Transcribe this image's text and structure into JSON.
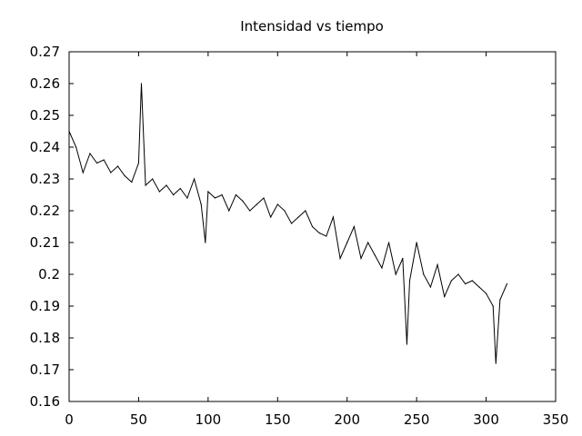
{
  "chart_data": {
    "type": "line",
    "title": "Intensidad vs tiempo",
    "xlabel": "",
    "ylabel": "",
    "xlim": [
      0,
      350
    ],
    "ylim": [
      0.16,
      0.27
    ],
    "x_ticks": [
      0,
      50,
      100,
      150,
      200,
      250,
      300,
      350
    ],
    "x_tick_labels": [
      "0",
      "50",
      "100",
      "150",
      "200",
      "250",
      "300",
      "350"
    ],
    "y_ticks": [
      0.16,
      0.17,
      0.18,
      0.19,
      0.2,
      0.21,
      0.22,
      0.23,
      0.24,
      0.25,
      0.26,
      0.27
    ],
    "y_tick_labels": [
      "0.16",
      "0.17",
      "0.18",
      "0.19",
      "0.2",
      "0.21",
      "0.22",
      "0.23",
      "0.24",
      "0.25",
      "0.26",
      "0.27"
    ],
    "grid": false,
    "legend": "none",
    "series": [
      {
        "color": "#000000",
        "x": [
          0,
          5,
          10,
          15,
          20,
          25,
          30,
          35,
          40,
          45,
          50,
          52,
          55,
          60,
          65,
          70,
          75,
          80,
          85,
          90,
          95,
          98,
          100,
          105,
          110,
          115,
          120,
          125,
          130,
          135,
          140,
          145,
          150,
          155,
          160,
          165,
          170,
          175,
          180,
          185,
          190,
          195,
          200,
          205,
          210,
          215,
          220,
          225,
          230,
          235,
          240,
          243,
          245,
          250,
          255,
          260,
          265,
          270,
          275,
          280,
          285,
          290,
          295,
          300,
          305,
          307,
          310,
          315
        ],
        "values": [
          0.245,
          0.24,
          0.232,
          0.238,
          0.235,
          0.236,
          0.232,
          0.234,
          0.231,
          0.229,
          0.235,
          0.26,
          0.228,
          0.23,
          0.226,
          0.228,
          0.225,
          0.227,
          0.224,
          0.23,
          0.222,
          0.21,
          0.226,
          0.224,
          0.225,
          0.22,
          0.225,
          0.223,
          0.22,
          0.222,
          0.224,
          0.218,
          0.222,
          0.22,
          0.216,
          0.218,
          0.22,
          0.215,
          0.213,
          0.212,
          0.218,
          0.205,
          0.21,
          0.215,
          0.205,
          0.21,
          0.206,
          0.202,
          0.21,
          0.2,
          0.205,
          0.178,
          0.198,
          0.21,
          0.2,
          0.196,
          0.203,
          0.193,
          0.198,
          0.2,
          0.197,
          0.198,
          0.196,
          0.194,
          0.19,
          0.172,
          0.192,
          0.197
        ]
      }
    ]
  }
}
